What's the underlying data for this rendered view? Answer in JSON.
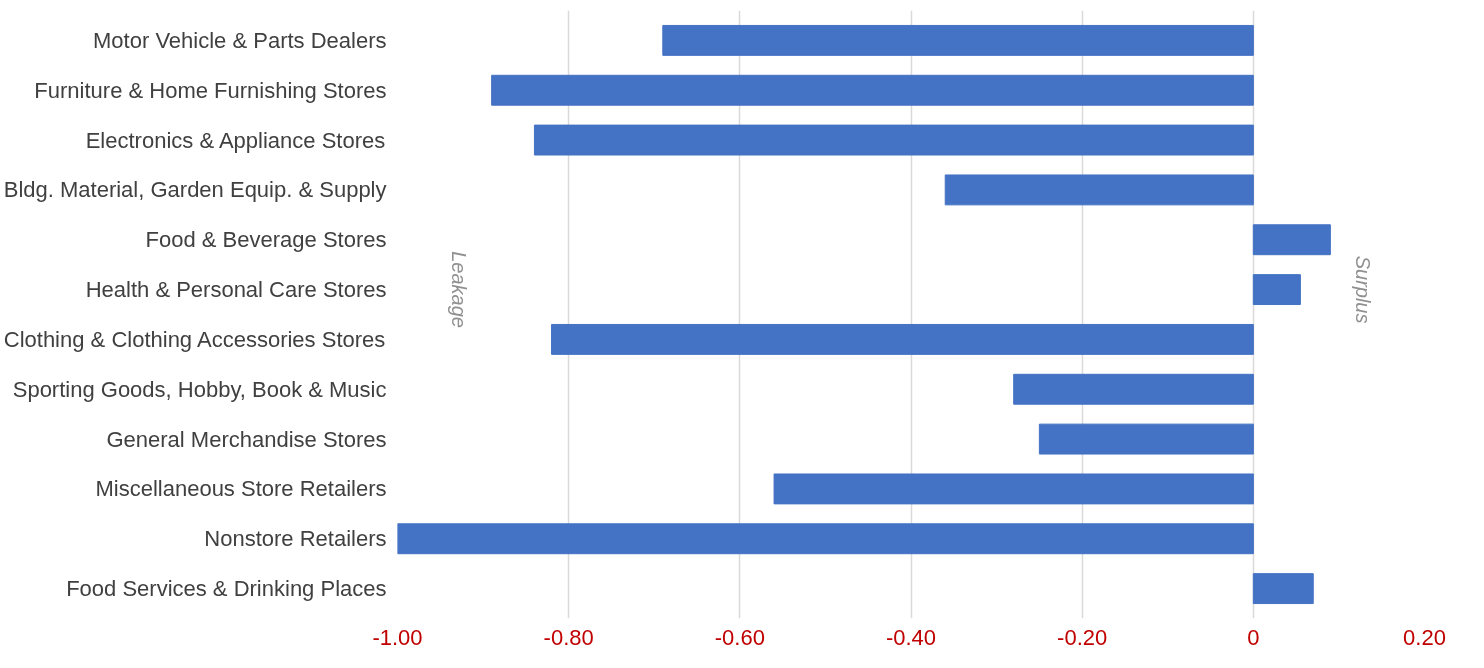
{
  "chart_data": {
    "type": "bar",
    "orientation": "horizontal",
    "categories": [
      "Motor Vehicle & Parts Dealers",
      "Furniture & Home Furnishing Stores",
      "Electronics & Appliance Stores",
      "Bldg. Material, Garden Equip. & Supply",
      "Food & Beverage Stores",
      "Health & Personal Care Stores",
      "Clothing & Clothing Accessories Stores",
      "Sporting Goods, Hobby, Book & Music",
      "General Merchandise Stores",
      "Miscellaneous Store Retailers",
      "Nonstore Retailers",
      "Food Services & Drinking Places"
    ],
    "values": [
      -0.69,
      -0.89,
      -0.84,
      -0.36,
      0.09,
      0.055,
      -0.82,
      -0.28,
      -0.25,
      -0.56,
      -1.0,
      0.07
    ],
    "color": "#4472c4",
    "xlim": [
      -1.0,
      0.2
    ],
    "xticks": [
      {
        "value": -1.0,
        "label": "-1.00"
      },
      {
        "value": -0.8,
        "label": "-0.80"
      },
      {
        "value": -0.6,
        "label": "-0.60"
      },
      {
        "value": -0.4,
        "label": "-0.40"
      },
      {
        "value": -0.2,
        "label": "-0.20"
      },
      0,
      {
        "value": 0.2,
        "label": "0.20"
      }
    ],
    "grid": "x",
    "annotations": [
      "Leakage",
      "Surplus"
    ]
  }
}
